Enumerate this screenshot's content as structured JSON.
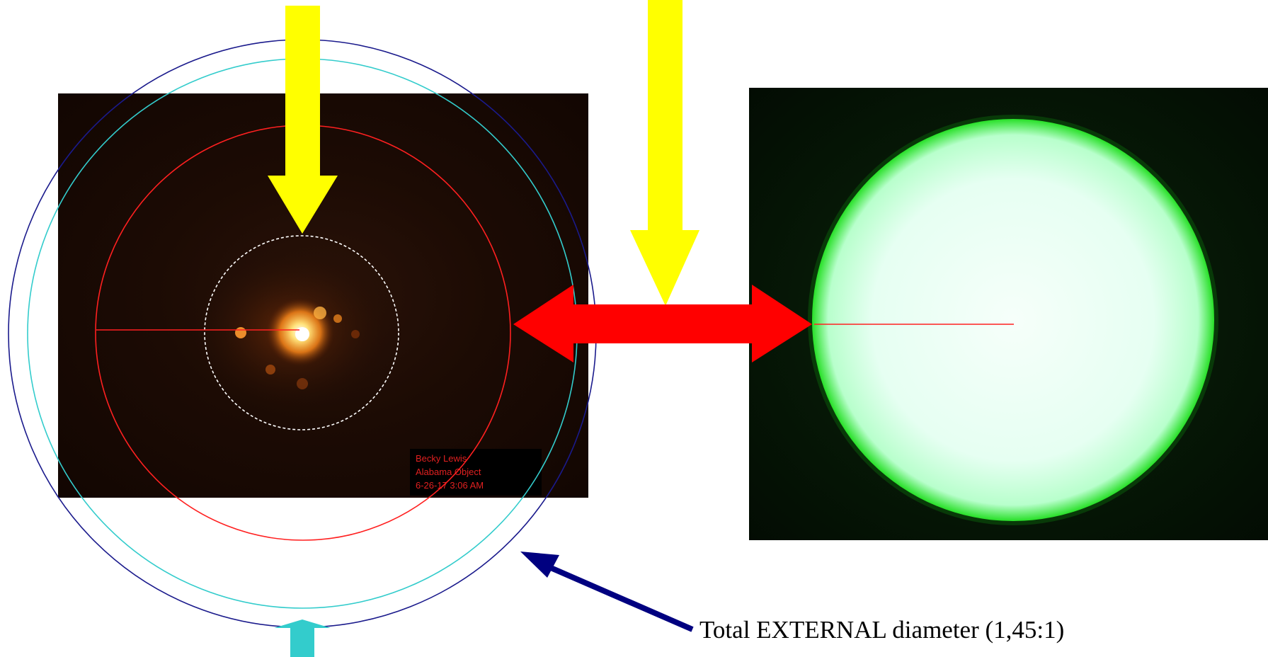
{
  "left_photo": {
    "caption_lines": [
      "Becky Lewis",
      "Alabama Object",
      "6-26-17 3:06 AM"
    ]
  },
  "annotation": {
    "text": "Total EXTERNAL diameter (1,45:1)"
  },
  "colors": {
    "yellow_arrow": "#ffff00",
    "red_arrow": "#ff0000",
    "navy_arrow": "#000080",
    "cyan_arrow": "#33cccc",
    "outer_circle": "#1a1a8c",
    "cyan_circle": "#33cccc",
    "red_circle": "#ff2020",
    "white_circle": "#ffffff"
  }
}
